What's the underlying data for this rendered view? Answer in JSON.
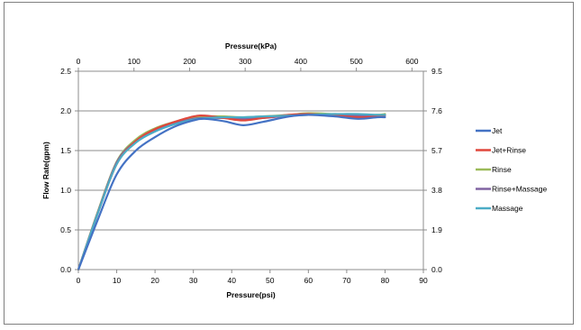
{
  "chart_data": {
    "type": "line",
    "title": "",
    "x_bottom": {
      "label": "Pressure(psi)",
      "ticks": [
        0,
        10,
        20,
        30,
        40,
        50,
        60,
        70,
        80,
        90
      ],
      "lim": [
        0,
        90
      ]
    },
    "x_top": {
      "label": "Pressure(kPa)",
      "ticks": [
        0,
        100,
        200,
        300,
        400,
        500,
        600
      ],
      "lim": [
        0,
        620.5
      ]
    },
    "y_left": {
      "label": "Flow Rate(gpm)",
      "ticks": [
        "0.0",
        "0.5",
        "1.0",
        "1.5",
        "2.0",
        "2.5"
      ],
      "lim": [
        0,
        2.5
      ]
    },
    "y_right": {
      "ticks": [
        "0.0",
        "1.9",
        "3.8",
        "5.7",
        "7.6",
        "9.5"
      ],
      "lim": [
        0,
        9.5
      ]
    },
    "grid": "horizontal",
    "legend": "right",
    "series": [
      {
        "name": "Jet",
        "color": "#4472C4",
        "x": [
          0,
          5,
          10,
          15,
          20,
          25,
          30,
          33,
          38,
          43,
          48,
          55,
          60,
          67,
          73,
          78,
          80
        ],
        "y": [
          0,
          0.62,
          1.2,
          1.5,
          1.67,
          1.8,
          1.88,
          1.9,
          1.87,
          1.82,
          1.86,
          1.93,
          1.95,
          1.93,
          1.9,
          1.92,
          1.92
        ]
      },
      {
        "name": "Jet+Rinse",
        "color": "#E0473C",
        "x": [
          0,
          5,
          10,
          15,
          20,
          25,
          30,
          33,
          38,
          43,
          48,
          55,
          60,
          67,
          73,
          78,
          80
        ],
        "y": [
          0,
          0.7,
          1.33,
          1.62,
          1.77,
          1.86,
          1.93,
          1.94,
          1.91,
          1.88,
          1.91,
          1.95,
          1.96,
          1.94,
          1.92,
          1.93,
          1.95
        ]
      },
      {
        "name": "Rinse",
        "color": "#9BBB59",
        "x": [
          0,
          5,
          10,
          15,
          20,
          25,
          30,
          33,
          38,
          43,
          48,
          55,
          60,
          67,
          73,
          78,
          80
        ],
        "y": [
          0,
          0.72,
          1.36,
          1.64,
          1.78,
          1.86,
          1.92,
          1.93,
          1.93,
          1.92,
          1.93,
          1.95,
          1.97,
          1.96,
          1.95,
          1.95,
          1.96
        ]
      },
      {
        "name": "Rinse+Massage",
        "color": "#8064A2",
        "x": [
          0,
          5,
          10,
          15,
          20,
          25,
          30,
          33,
          38,
          43,
          48,
          55,
          60,
          67,
          73,
          78,
          80
        ],
        "y": [
          0,
          0.71,
          1.35,
          1.62,
          1.76,
          1.84,
          1.9,
          1.91,
          1.91,
          1.9,
          1.91,
          1.94,
          1.95,
          1.95,
          1.94,
          1.94,
          1.94
        ]
      },
      {
        "name": "Massage",
        "color": "#4BACC6",
        "x": [
          0,
          5,
          10,
          15,
          20,
          25,
          30,
          33,
          38,
          43,
          48,
          55,
          60,
          67,
          73,
          78,
          80
        ],
        "y": [
          0,
          0.7,
          1.33,
          1.6,
          1.74,
          1.83,
          1.89,
          1.91,
          1.92,
          1.92,
          1.93,
          1.94,
          1.95,
          1.96,
          1.96,
          1.95,
          1.95
        ]
      }
    ]
  }
}
